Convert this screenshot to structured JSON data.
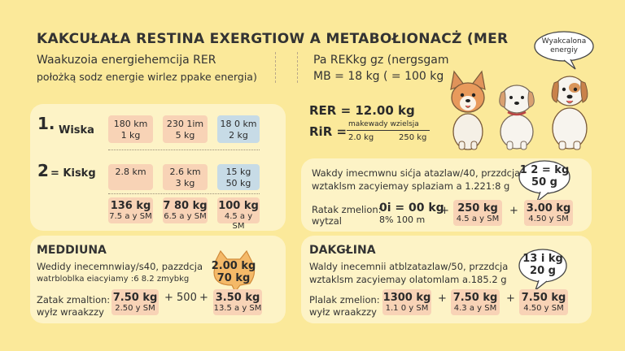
{
  "title": "KAKCUŁAŁA RESTINA EXERGTIOW A METABOŁIONACŻ (MER",
  "subtitle": {
    "left_line1": "Waakuzoia energiehemcija RER",
    "left_line2": "położką sodz energie wirlez ppake energia)",
    "right_line1": "Pa REKkg gz (nergsgam",
    "right_line2": "MB = 18 kg ( = 100 kg"
  },
  "speech_top": {
    "line1": "Wyakcalona",
    "line2": "energiy"
  },
  "formula": {
    "rer": "RER = 12.00 kg",
    "rir": "RiR =",
    "frac_top": "makewady wzielsja",
    "frac_bottom_left": "2.0 kg",
    "frac_bottom_right": "250 kg"
  },
  "left_card": {
    "row1": {
      "number": "1.",
      "label": "Wiska",
      "cells": [
        {
          "l1": "180 km",
          "l2": "1 kg"
        },
        {
          "l1": "230 1im",
          "l2": "5 kg"
        },
        {
          "l1": "18 0 km",
          "l2": "2 kg"
        }
      ]
    },
    "row2": {
      "number": "2",
      "label": "= Kiskg",
      "cells": [
        {
          "l1": "2.8 km",
          "l2": ""
        },
        {
          "l1": "2.6 km",
          "l2": "3 kg"
        },
        {
          "l1": "15 kg",
          "l2": "50 kg"
        }
      ]
    },
    "results": [
      {
        "l1": "136 kg",
        "l2": "7.5 a y SM"
      },
      {
        "l1": "7 80 kg",
        "l2": "6.5 a y SM"
      },
      {
        "l1": "100 kg",
        "l2": "4.5 a y SM"
      }
    ]
  },
  "right_card_top": {
    "text1": "Wakdy imecmwnu sićja atazlaw/40, przzdcja",
    "text2": "wztaklsm zacyiemay splaziam a 1.221:8 g",
    "bubble": {
      "l1": "1 2 = kg",
      "l2": "50 g"
    },
    "calc_label1": "Ratak zmelion:",
    "calc_label2": "wytzal",
    "calc_value": "0i = 00 kg",
    "calc_value_sub": "8% 100 m",
    "plus1": "+",
    "plus2": "+",
    "results": [
      {
        "l1": "250 kg",
        "l2": "4.5 a y SM"
      },
      {
        "l1": "3.00 kg",
        "l2": "4.50 y SM"
      }
    ]
  },
  "bottom_left": {
    "heading": "MEDDIUNA",
    "text1": "Wedidy inecemnwiay/s40, pazzdcja",
    "text2": "watrbloblka eiacyiamy :6 8.2 zmybkg",
    "cat_l1": "2.00 kg",
    "cat_l2": "70 kg",
    "calc_label1": "Zatak zmaltion:",
    "calc_label2": "wyłz wraakzzy",
    "result1": {
      "l1": "7.50 kg",
      "l2": "2.50 y SM"
    },
    "op": "+ 500",
    "plus": "+",
    "result2": {
      "l1": "3.50 kg",
      "l2": "13.5 a y SM"
    }
  },
  "bottom_right": {
    "heading": "DAKGŁINA",
    "text1": "Waldy inecemnii atblzatazlaw/50, przzdcja",
    "text2": "wztaklsm zacyiemay olatomlam a.185.2 g",
    "bubble": {
      "l1": "13 i kg",
      "l2": "20 g"
    },
    "calc_label1": "Plalak zmelion:",
    "calc_label2": "wyłz wraakzzy",
    "plus1": "+",
    "plus2": "+",
    "results": [
      {
        "l1": "1300 kg",
        "l2": "1.1 0 y SM"
      },
      {
        "l1": "7.50 kg",
        "l2": "4.3 a y SM"
      },
      {
        "l1": "7.50 kg",
        "l2": "4.50 y SM"
      }
    ]
  },
  "colors": {
    "background": "#fbe99a",
    "card": "#fdf3c6",
    "peach": "#f8d3b6",
    "blue": "#c7dbe6"
  }
}
